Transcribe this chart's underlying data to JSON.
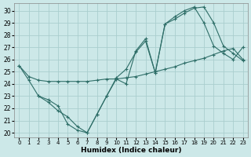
{
  "xlabel": "Humidex (Indice chaleur)",
  "background_color": "#cce8e8",
  "grid_color": "#aacece",
  "line_color": "#2e6e68",
  "xlim": [
    -0.5,
    23.5
  ],
  "ylim": [
    19.6,
    30.6
  ],
  "yticks": [
    20,
    21,
    22,
    23,
    24,
    25,
    26,
    27,
    28,
    29,
    30
  ],
  "xticks": [
    0,
    1,
    2,
    3,
    4,
    5,
    6,
    7,
    8,
    9,
    10,
    11,
    12,
    13,
    14,
    15,
    16,
    17,
    18,
    19,
    20,
    21,
    22,
    23
  ],
  "line1_x": [
    0,
    1,
    2,
    3,
    4,
    5,
    6,
    7,
    8,
    9,
    10,
    11,
    12,
    13,
    14,
    15,
    16,
    17,
    18,
    19,
    20,
    21,
    22,
    23
  ],
  "line1_y": [
    25.5,
    24.3,
    23.0,
    22.7,
    22.2,
    20.7,
    20.2,
    20.0,
    21.5,
    23.0,
    24.4,
    24.0,
    26.7,
    27.7,
    24.9,
    28.9,
    29.3,
    29.8,
    30.2,
    30.3,
    29.0,
    27.1,
    26.5,
    25.9
  ],
  "line2_x": [
    0,
    1,
    2,
    3,
    4,
    5,
    6,
    7,
    8,
    9,
    10,
    11,
    12,
    13,
    14,
    15,
    16,
    17,
    18,
    19,
    20,
    21,
    22,
    23
  ],
  "line2_y": [
    25.5,
    24.6,
    24.3,
    24.2,
    24.2,
    24.2,
    24.2,
    24.2,
    24.3,
    24.4,
    24.4,
    24.5,
    24.6,
    24.8,
    25.0,
    25.2,
    25.4,
    25.7,
    25.9,
    26.1,
    26.4,
    26.7,
    26.9,
    26.0
  ],
  "line3_x": [
    2,
    3,
    4,
    5,
    6,
    7,
    8,
    9,
    10,
    11,
    12,
    13,
    14,
    15,
    16,
    17,
    18,
    19,
    20,
    21,
    22,
    23
  ],
  "line3_y": [
    23.0,
    22.5,
    21.8,
    21.3,
    20.5,
    20.0,
    21.5,
    23.0,
    24.5,
    25.2,
    26.6,
    27.5,
    24.9,
    28.9,
    29.5,
    30.0,
    30.3,
    29.0,
    27.1,
    26.5,
    26.0,
    27.0
  ]
}
